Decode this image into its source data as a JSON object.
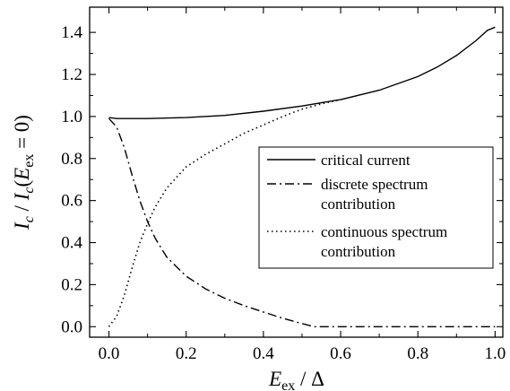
{
  "chart_data": {
    "type": "line",
    "title": "",
    "xlabel": {
      "main": "E",
      "sub": "ex",
      "rest": " / Δ"
    },
    "ylabel": {
      "p1": "I",
      "p1sub": "c",
      "p2": " / ",
      "p3": "I",
      "p3sub": "c",
      "p4": "(",
      "p5": "E",
      "p5sub": "ex",
      "p6": " = 0)"
    },
    "xlim": [
      -0.05,
      1.02
    ],
    "ylim": [
      -0.05,
      1.52
    ],
    "xticks": [
      0.0,
      0.2,
      0.4,
      0.6,
      0.8,
      1.0
    ],
    "xtick_labels": [
      "0.0",
      "0.2",
      "0.4",
      "0.6",
      "0.8",
      "1.0"
    ],
    "yticks": [
      0.0,
      0.2,
      0.4,
      0.6,
      0.8,
      1.0,
      1.2,
      1.4
    ],
    "ytick_labels": [
      "0.0",
      "0.2",
      "0.4",
      "0.6",
      "0.8",
      "1.0",
      "1.2",
      "1.4"
    ],
    "grid": false,
    "legend_position": "center-right",
    "series": [
      {
        "name": "critical current",
        "style": "solid",
        "x": [
          0.0,
          0.02,
          0.05,
          0.1,
          0.2,
          0.3,
          0.4,
          0.5,
          0.55,
          0.6,
          0.7,
          0.8,
          0.85,
          0.9,
          0.95,
          0.98,
          1.0
        ],
        "y": [
          0.995,
          0.99,
          0.99,
          0.99,
          0.995,
          1.005,
          1.025,
          1.05,
          1.065,
          1.08,
          1.125,
          1.19,
          1.235,
          1.29,
          1.36,
          1.41,
          1.425
        ]
      },
      {
        "name": "discrete spectrum\ncontribution",
        "style": "dashdot",
        "x": [
          0.0,
          0.02,
          0.04,
          0.06,
          0.08,
          0.1,
          0.12,
          0.15,
          0.2,
          0.25,
          0.3,
          0.35,
          0.4,
          0.45,
          0.5,
          0.53,
          0.6,
          0.7,
          0.8,
          0.9,
          1.0
        ],
        "y": [
          0.99,
          0.95,
          0.85,
          0.72,
          0.6,
          0.5,
          0.42,
          0.33,
          0.24,
          0.18,
          0.135,
          0.1,
          0.07,
          0.04,
          0.015,
          0.0,
          0.0,
          0.0,
          0.0,
          0.0,
          0.0
        ]
      },
      {
        "name": "continuous spectrum\ncontribution",
        "style": "dotted",
        "x": [
          0.0,
          0.02,
          0.04,
          0.06,
          0.08,
          0.1,
          0.12,
          0.15,
          0.2,
          0.25,
          0.3,
          0.35,
          0.4,
          0.45,
          0.5,
          0.53,
          0.55,
          0.6
        ],
        "y": [
          0.0,
          0.05,
          0.15,
          0.28,
          0.4,
          0.49,
          0.57,
          0.66,
          0.76,
          0.82,
          0.87,
          0.92,
          0.96,
          1.0,
          1.035,
          1.05,
          1.06,
          1.08
        ]
      }
    ]
  }
}
